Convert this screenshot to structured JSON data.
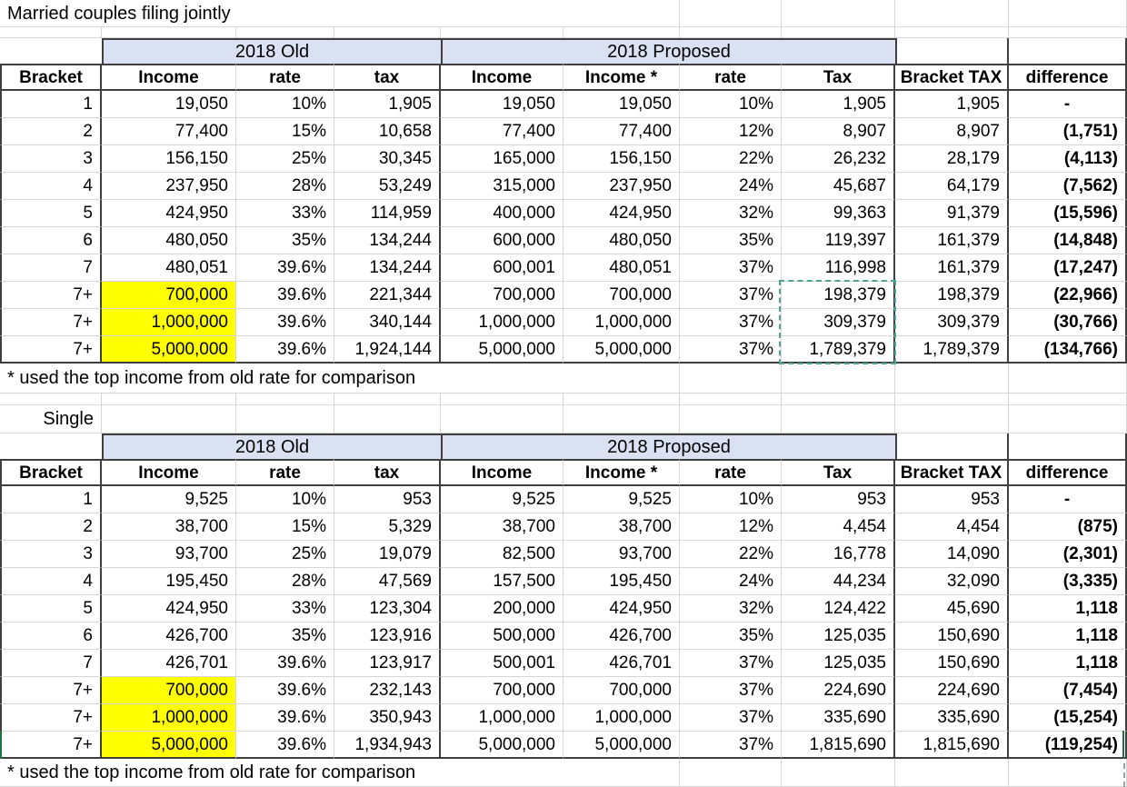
{
  "sheet": {
    "colors": {
      "band_fill": "#d9e1f2",
      "highlight_yellow": "#ffff00",
      "gridline": "#d6d6d6",
      "dark_border": "#3f3f3f",
      "marquee_dashed": "#4fa593",
      "selection_green": "#217346"
    },
    "tables": [
      {
        "title": "Married couples filing jointly",
        "group_old": "2018 Old",
        "group_proposed": "2018 Proposed",
        "headers": [
          "Bracket",
          "Income",
          "rate",
          "tax",
          "Income",
          "Income *",
          "rate",
          "Tax",
          "Bracket TAX",
          "difference"
        ],
        "rows": [
          {
            "cells": [
              "1",
              "19,050",
              "10%",
              "1,905",
              "19,050",
              "19,050",
              "10%",
              "1,905",
              "1,905",
              "-"
            ],
            "highlight": false
          },
          {
            "cells": [
              "2",
              "77,400",
              "15%",
              "10,658",
              "77,400",
              "77,400",
              "12%",
              "8,907",
              "8,907",
              "(1,751)"
            ],
            "highlight": false
          },
          {
            "cells": [
              "3",
              "156,150",
              "25%",
              "30,345",
              "165,000",
              "156,150",
              "22%",
              "26,232",
              "28,179",
              "(4,113)"
            ],
            "highlight": false
          },
          {
            "cells": [
              "4",
              "237,950",
              "28%",
              "53,249",
              "315,000",
              "237,950",
              "24%",
              "45,687",
              "64,179",
              "(7,562)"
            ],
            "highlight": false
          },
          {
            "cells": [
              "5",
              "424,950",
              "33%",
              "114,959",
              "400,000",
              "424,950",
              "32%",
              "99,363",
              "91,379",
              "(15,596)"
            ],
            "highlight": false
          },
          {
            "cells": [
              "6",
              "480,050",
              "35%",
              "134,244",
              "600,000",
              "480,050",
              "35%",
              "119,397",
              "161,379",
              "(14,848)"
            ],
            "highlight": false
          },
          {
            "cells": [
              "7",
              "480,051",
              "39.6%",
              "134,244",
              "600,001",
              "480,051",
              "37%",
              "116,998",
              "161,379",
              "(17,247)"
            ],
            "highlight": false
          },
          {
            "cells": [
              "7+",
              "700,000",
              "39.6%",
              "221,344",
              "700,000",
              "700,000",
              "37%",
              "198,379",
              "198,379",
              "(22,966)"
            ],
            "highlight": true
          },
          {
            "cells": [
              "7+",
              "1,000,000",
              "39.6%",
              "340,144",
              "1,000,000",
              "1,000,000",
              "37%",
              "309,379",
              "309,379",
              "(30,766)"
            ],
            "highlight": true
          },
          {
            "cells": [
              "7+",
              "5,000,000",
              "39.6%",
              "1,924,144",
              "5,000,000",
              "5,000,000",
              "37%",
              "1,789,379",
              "1,789,379",
              "(134,766)"
            ],
            "highlight": true
          }
        ],
        "footnote": "* used the top income from old rate for comparison"
      },
      {
        "title": "Single",
        "group_old": "2018 Old",
        "group_proposed": "2018 Proposed",
        "headers": [
          "Bracket",
          "Income",
          "rate",
          "tax",
          "Income",
          "Income *",
          "rate",
          "Tax",
          "Bracket TAX",
          "difference"
        ],
        "rows": [
          {
            "cells": [
              "1",
              "9,525",
              "10%",
              "953",
              "9,525",
              "9,525",
              "10%",
              "953",
              "953",
              "-"
            ],
            "highlight": false
          },
          {
            "cells": [
              "2",
              "38,700",
              "15%",
              "5,329",
              "38,700",
              "38,700",
              "12%",
              "4,454",
              "4,454",
              "(875)"
            ],
            "highlight": false
          },
          {
            "cells": [
              "3",
              "93,700",
              "25%",
              "19,079",
              "82,500",
              "93,700",
              "22%",
              "16,778",
              "14,090",
              "(2,301)"
            ],
            "highlight": false
          },
          {
            "cells": [
              "4",
              "195,450",
              "28%",
              "47,569",
              "157,500",
              "195,450",
              "24%",
              "44,234",
              "32,090",
              "(3,335)"
            ],
            "highlight": false
          },
          {
            "cells": [
              "5",
              "424,950",
              "33%",
              "123,304",
              "200,000",
              "424,950",
              "32%",
              "124,422",
              "45,690",
              "1,118"
            ],
            "highlight": false
          },
          {
            "cells": [
              "6",
              "426,700",
              "35%",
              "123,916",
              "500,000",
              "426,700",
              "35%",
              "125,035",
              "150,690",
              "1,118"
            ],
            "highlight": false
          },
          {
            "cells": [
              "7",
              "426,701",
              "39.6%",
              "123,917",
              "500,001",
              "426,701",
              "37%",
              "125,035",
              "150,690",
              "1,118"
            ],
            "highlight": false
          },
          {
            "cells": [
              "7+",
              "700,000",
              "39.6%",
              "232,143",
              "700,000",
              "700,000",
              "37%",
              "224,690",
              "224,690",
              "(7,454)"
            ],
            "highlight": true
          },
          {
            "cells": [
              "7+",
              "1,000,000",
              "39.6%",
              "350,943",
              "1,000,000",
              "1,000,000",
              "37%",
              "335,690",
              "335,690",
              "(15,254)"
            ],
            "highlight": true
          },
          {
            "cells": [
              "7+",
              "5,000,000",
              "39.6%",
              "1,934,943",
              "5,000,000",
              "5,000,000",
              "37%",
              "1,815,690",
              "1,815,690",
              "(119,254)"
            ],
            "highlight": true
          }
        ],
        "footnote": "* used the top income from old rate for comparison"
      }
    ]
  }
}
